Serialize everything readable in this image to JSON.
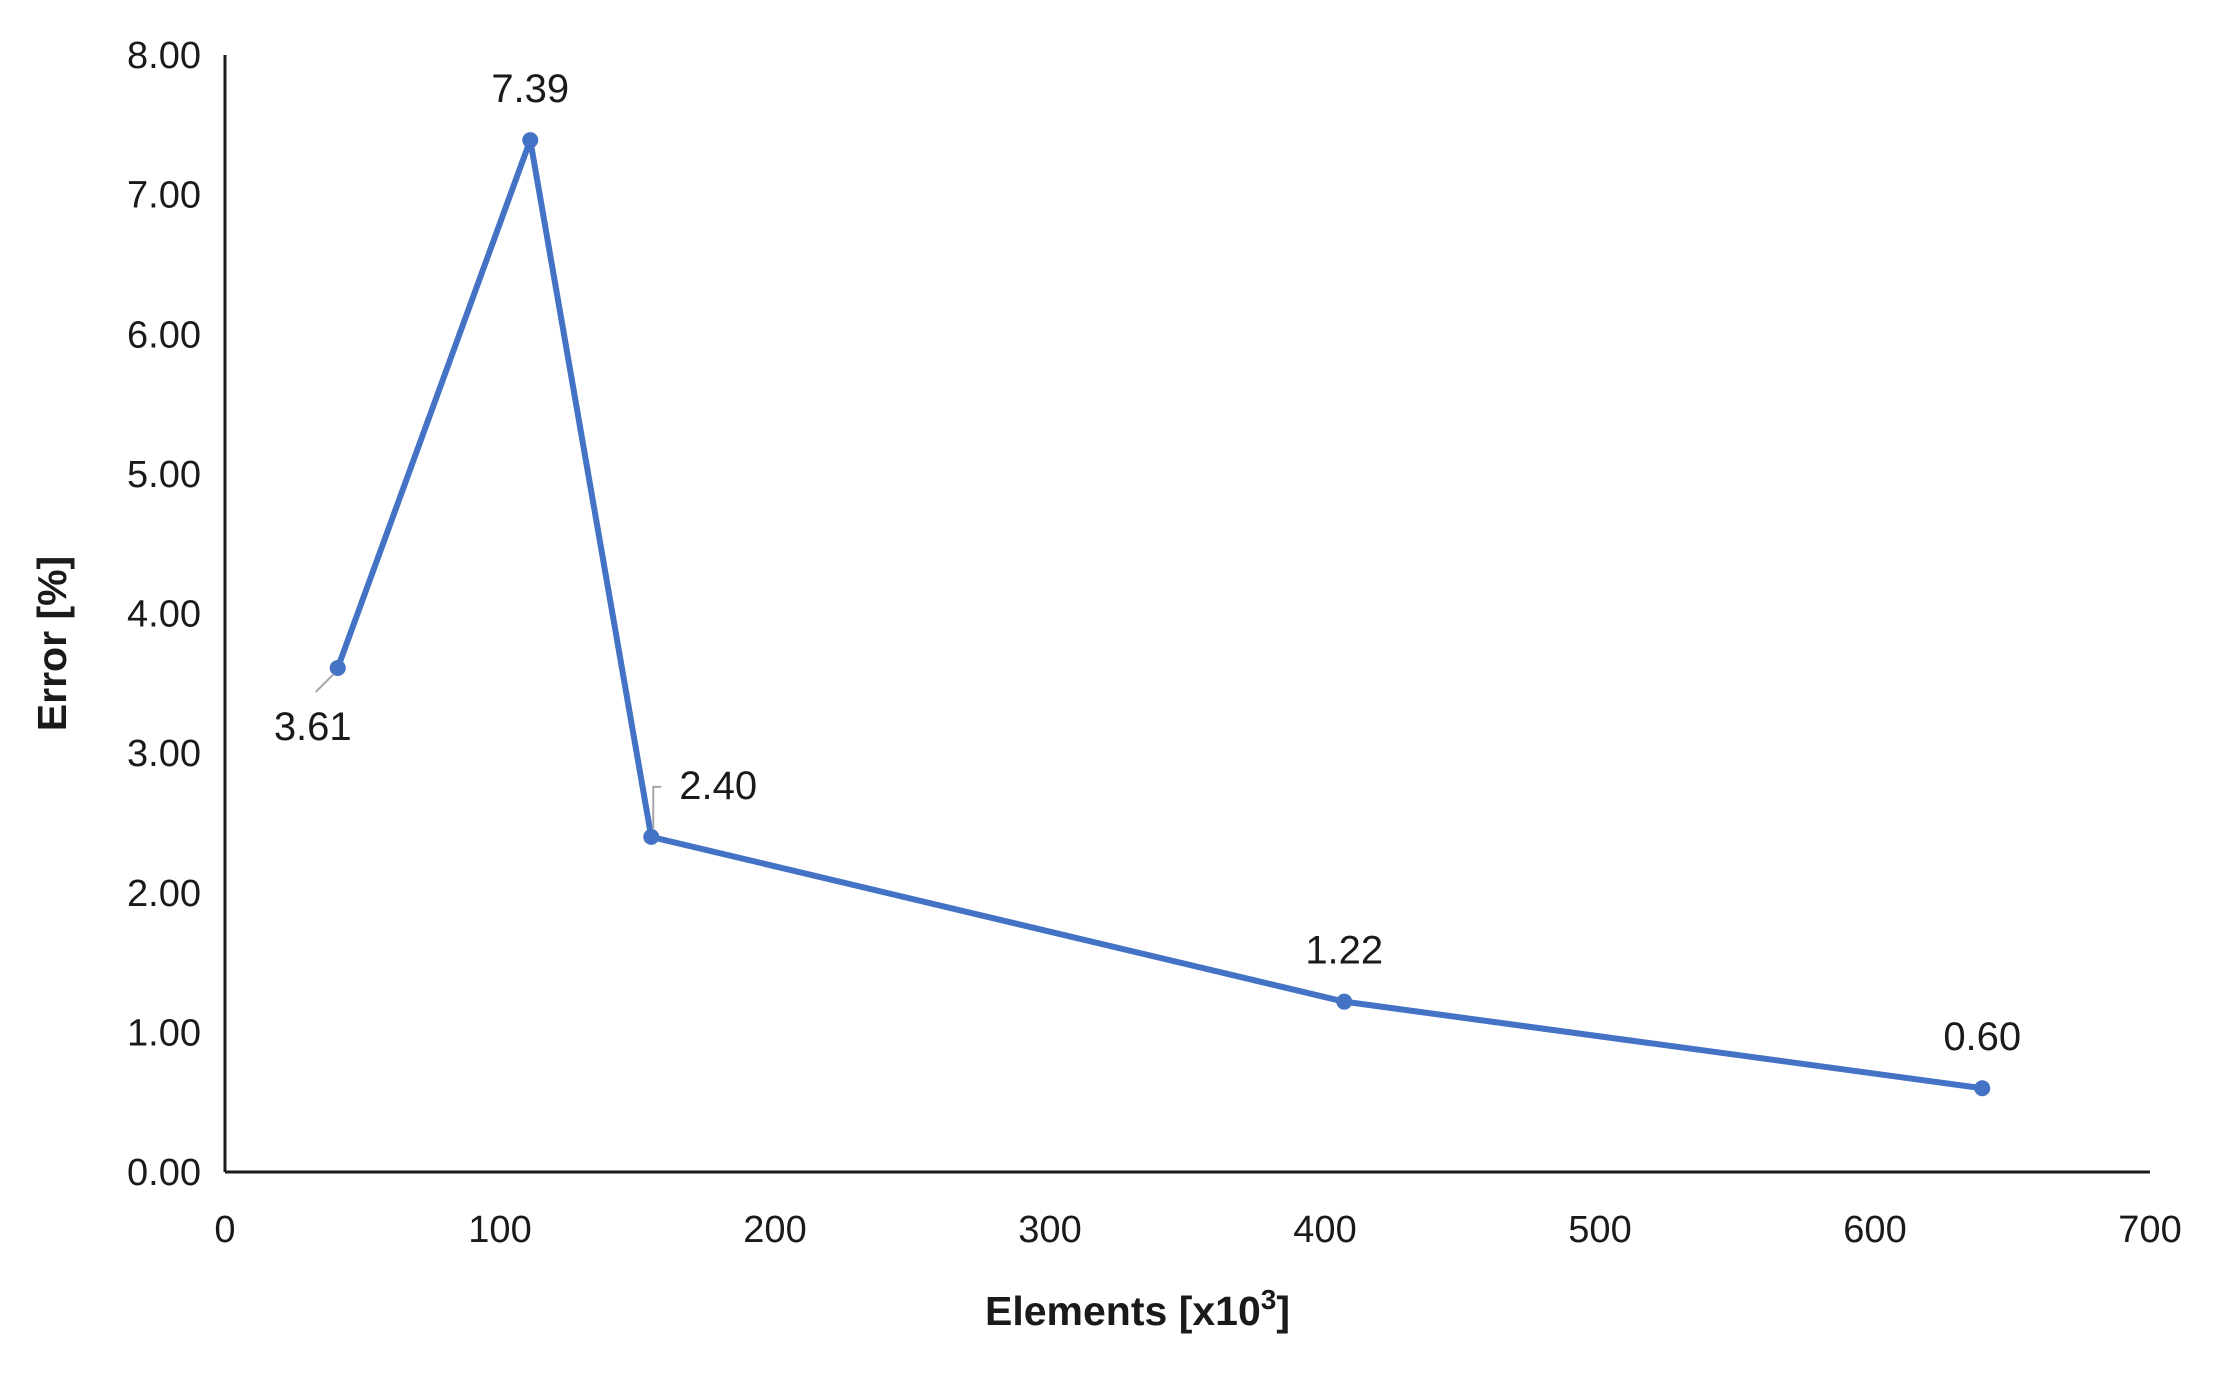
{
  "chart_data": {
    "type": "line",
    "title": "",
    "xlabel": "Elements [x10",
    "xlabel_sup": "3",
    "xlabel_suffix": "]",
    "ylabel": "Error [%]",
    "xlim": [
      0,
      700
    ],
    "ylim": [
      0,
      8
    ],
    "x_ticks": [
      0,
      100,
      200,
      300,
      400,
      500,
      600,
      700
    ],
    "x_tick_labels": [
      "0",
      "100",
      "200",
      "300",
      "400",
      "500",
      "600",
      "700"
    ],
    "y_ticks": [
      0,
      1,
      2,
      3,
      4,
      5,
      6,
      7,
      8
    ],
    "y_tick_labels": [
      "0.00",
      "1.00",
      "2.00",
      "3.00",
      "4.00",
      "5.00",
      "6.00",
      "7.00",
      "8.00"
    ],
    "grid": false,
    "legend": "none",
    "series": [
      {
        "color": "#4472C4",
        "x": [
          41,
          111,
          155,
          407,
          639
        ],
        "y": [
          3.61,
          7.39,
          2.4,
          1.22,
          0.6
        ],
        "data_labels": [
          "3.61",
          "7.39",
          "2.40",
          "1.22",
          "0.60"
        ]
      }
    ]
  }
}
